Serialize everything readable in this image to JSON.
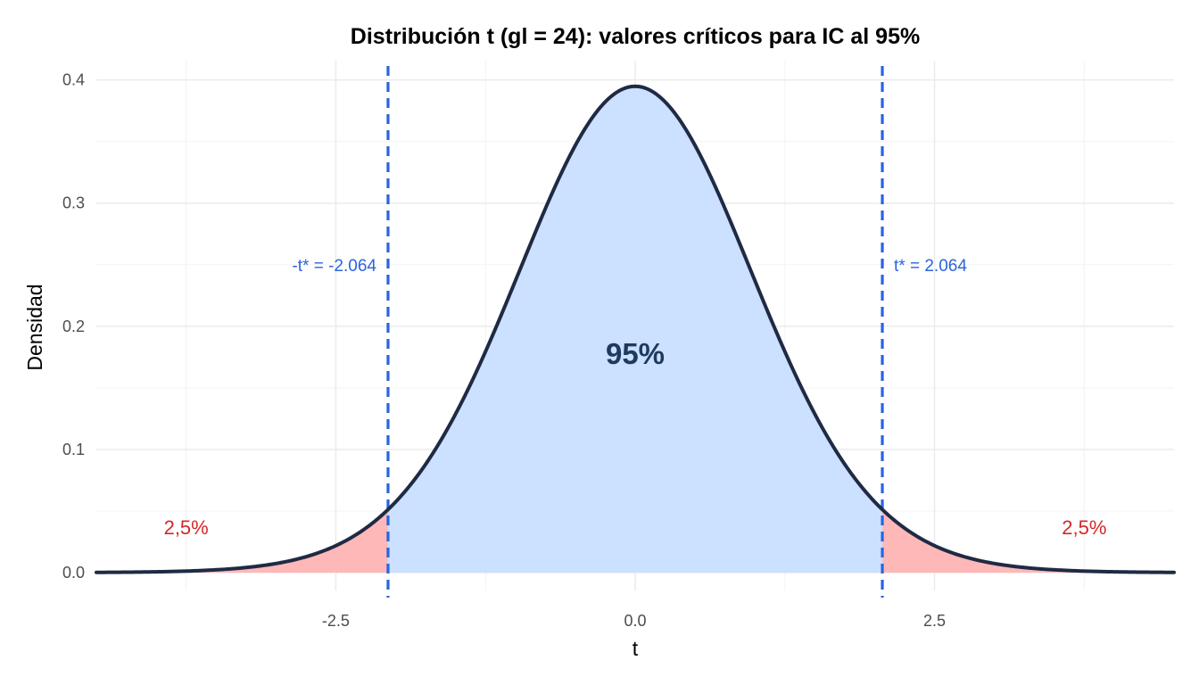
{
  "chart_data": {
    "type": "area",
    "title": "Distribución t (gl = 24): valores críticos para IC al 95%",
    "xlabel": "t",
    "ylabel": "Densidad",
    "df": 24,
    "xlim": [
      -4.5,
      4.5
    ],
    "ylim": [
      0,
      0.4
    ],
    "x_ticks": [
      -2.5,
      0.0,
      2.5
    ],
    "x_tick_labels": [
      "-2.5",
      "0.0",
      "2.5"
    ],
    "y_ticks": [
      0,
      0.1,
      0.2,
      0.3,
      0.4
    ],
    "y_tick_labels": [
      "0.0",
      "0.1",
      "0.2",
      "0.3",
      "0.4"
    ],
    "critical_value": 2.064,
    "critical_labels": {
      "left": "-t* = -2.064",
      "right": "t* = 2.064"
    },
    "center_label": "95%",
    "tail_labels": {
      "left": "2,5%",
      "right": "2,5%"
    },
    "grid": true,
    "legend": "none",
    "colors": {
      "curve": "#1f2a44",
      "center_fill": "#cce0ff",
      "tail_fill": "#ffb8b8",
      "critical_line": "#2b63e0",
      "critical_text": "#2b63e0",
      "tail_text": "#d62728",
      "center_text": "#1e3a5f",
      "grid_major": "#ebebeb",
      "grid_minor": "#f4f4f4"
    }
  }
}
